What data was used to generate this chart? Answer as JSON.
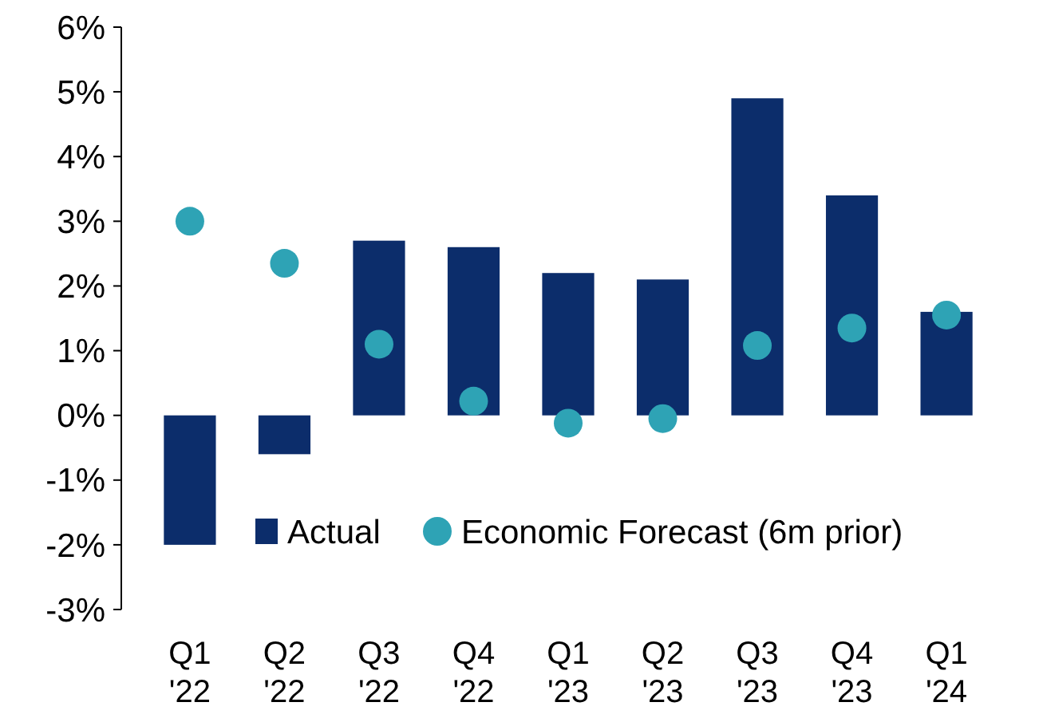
{
  "chart_data": {
    "type": "bar",
    "categories": [
      "Q1\n'22",
      "Q2\n'22",
      "Q3\n'22",
      "Q4\n'22",
      "Q1\n'23",
      "Q2\n'23",
      "Q3\n'23",
      "Q4\n'23",
      "Q1\n'24"
    ],
    "series": [
      {
        "name": "Actual",
        "color": "#0c2d6b",
        "values": [
          -2.0,
          -0.6,
          2.7,
          2.6,
          2.2,
          2.1,
          4.9,
          3.4,
          1.6
        ]
      },
      {
        "name": "Economic Forecast (6m prior)",
        "type": "scatter",
        "color": "#2ea3b5",
        "values": [
          3.0,
          2.35,
          1.1,
          0.22,
          -0.12,
          -0.05,
          1.08,
          1.35,
          1.55
        ]
      }
    ],
    "ylim": [
      -3,
      6
    ],
    "yticks": [
      {
        "value": -3,
        "label": "-3%"
      },
      {
        "value": -2,
        "label": "-2%"
      },
      {
        "value": -1,
        "label": "-1%"
      },
      {
        "value": 0,
        "label": "0%"
      },
      {
        "value": 1,
        "label": "1%"
      },
      {
        "value": 2,
        "label": "2%"
      },
      {
        "value": 3,
        "label": "3%"
      },
      {
        "value": 4,
        "label": "4%"
      },
      {
        "value": 5,
        "label": "5%"
      },
      {
        "value": 6,
        "label": "6%"
      }
    ],
    "grid": false,
    "legend": "bottom right",
    "marker": "circle"
  }
}
